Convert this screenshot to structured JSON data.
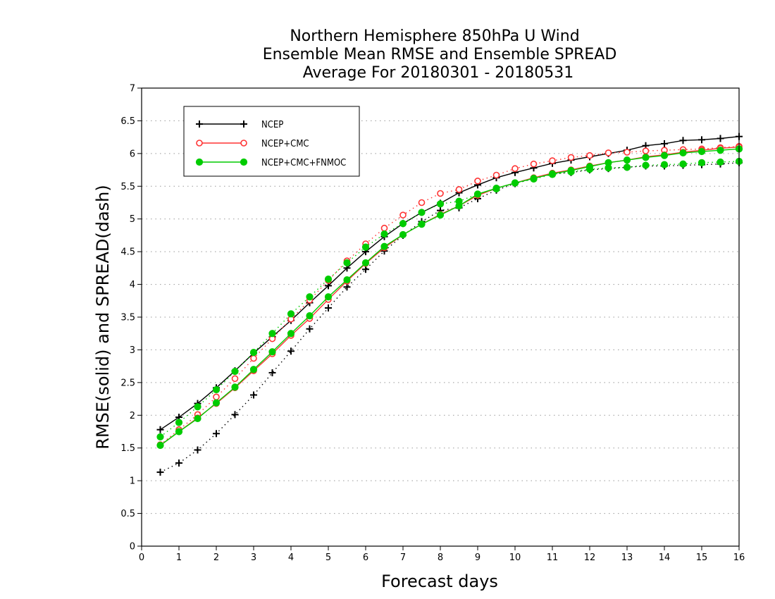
{
  "chart_data": {
    "type": "line",
    "title_lines": [
      "Northern Hemisphere 850hPa U Wind",
      "Ensemble Mean RMSE and Ensemble SPREAD",
      "Average For 20180301 - 20180531"
    ],
    "xlabel": "Forecast days",
    "ylabel": "RMSE(solid) and SPREAD(dash)",
    "xlim": [
      0,
      16
    ],
    "ylim": [
      0,
      7
    ],
    "x_ticks": [
      "0",
      "1",
      "2",
      "3",
      "4",
      "5",
      "6",
      "7",
      "8",
      "9",
      "10",
      "11",
      "12",
      "13",
      "14",
      "15",
      "16"
    ],
    "y_ticks": [
      "0",
      "0.5",
      "1",
      "1.5",
      "2",
      "2.5",
      "3",
      "3.5",
      "4",
      "4.5",
      "5",
      "5.5",
      "6",
      "6.5",
      "7"
    ],
    "grid": "horizontal dotted",
    "legend_position": "top-left",
    "x": [
      0.5,
      1,
      1.5,
      2,
      2.5,
      3,
      3.5,
      4,
      4.5,
      5,
      5.5,
      6,
      6.5,
      7,
      7.5,
      8,
      8.5,
      9,
      9.5,
      10,
      10.5,
      11,
      11.5,
      12,
      12.5,
      13,
      13.5,
      14,
      14.5,
      15,
      15.5,
      16
    ],
    "series": [
      {
        "name": "NCEP",
        "color": "#000000",
        "marker": "plus",
        "rmse": [
          1.78,
          1.97,
          2.18,
          2.42,
          2.68,
          2.95,
          3.2,
          3.45,
          3.72,
          3.98,
          4.25,
          4.5,
          4.73,
          4.93,
          5.1,
          5.24,
          5.4,
          5.52,
          5.63,
          5.71,
          5.78,
          5.85,
          5.9,
          5.95,
          6.0,
          6.05,
          6.12,
          6.15,
          6.2,
          6.21,
          6.23,
          6.26
        ],
        "spread": [
          1.13,
          1.27,
          1.47,
          1.72,
          2.01,
          2.31,
          2.65,
          2.98,
          3.32,
          3.64,
          3.96,
          4.23,
          4.51,
          4.75,
          4.96,
          5.13,
          5.17,
          5.31,
          5.44,
          5.54,
          5.62,
          5.69,
          5.71,
          5.75,
          5.77,
          5.79,
          5.81,
          5.81,
          5.82,
          5.83,
          5.84,
          5.86
        ]
      },
      {
        "name": "NCEP+CMC",
        "color": "#ff3333",
        "marker": "open-circle",
        "rmse": [
          1.54,
          1.75,
          1.96,
          2.18,
          2.42,
          2.68,
          2.94,
          3.22,
          3.48,
          3.77,
          4.05,
          4.32,
          4.56,
          4.76,
          4.92,
          5.07,
          5.2,
          5.36,
          5.47,
          5.55,
          5.63,
          5.7,
          5.75,
          5.81,
          5.86,
          5.9,
          5.95,
          5.98,
          6.02,
          6.05,
          6.08,
          6.1
        ],
        "spread": [
          1.55,
          1.78,
          2.01,
          2.28,
          2.56,
          2.87,
          3.17,
          3.47,
          3.76,
          4.06,
          4.36,
          4.62,
          4.86,
          5.06,
          5.25,
          5.39,
          5.45,
          5.58,
          5.67,
          5.77,
          5.84,
          5.89,
          5.94,
          5.97,
          6.01,
          6.02,
          6.04,
          6.05,
          6.06,
          6.07,
          6.09,
          6.11
        ]
      },
      {
        "name": "NCEP+CMC+FNMOC",
        "color": "#00cc00",
        "marker": "filled-circle",
        "rmse": [
          1.54,
          1.75,
          1.95,
          2.19,
          2.43,
          2.7,
          2.97,
          3.25,
          3.52,
          3.81,
          4.07,
          4.33,
          4.58,
          4.76,
          4.92,
          5.06,
          5.2,
          5.38,
          5.47,
          5.55,
          5.62,
          5.69,
          5.74,
          5.8,
          5.86,
          5.9,
          5.94,
          5.97,
          6.01,
          6.03,
          6.05,
          6.07
        ],
        "spread": [
          1.67,
          1.89,
          2.13,
          2.39,
          2.67,
          2.96,
          3.25,
          3.55,
          3.81,
          4.08,
          4.33,
          4.57,
          4.77,
          4.93,
          5.1,
          5.23,
          5.27,
          5.38,
          5.46,
          5.55,
          5.61,
          5.68,
          5.72,
          5.76,
          5.78,
          5.79,
          5.82,
          5.83,
          5.84,
          5.86,
          5.87,
          5.88
        ]
      }
    ]
  }
}
